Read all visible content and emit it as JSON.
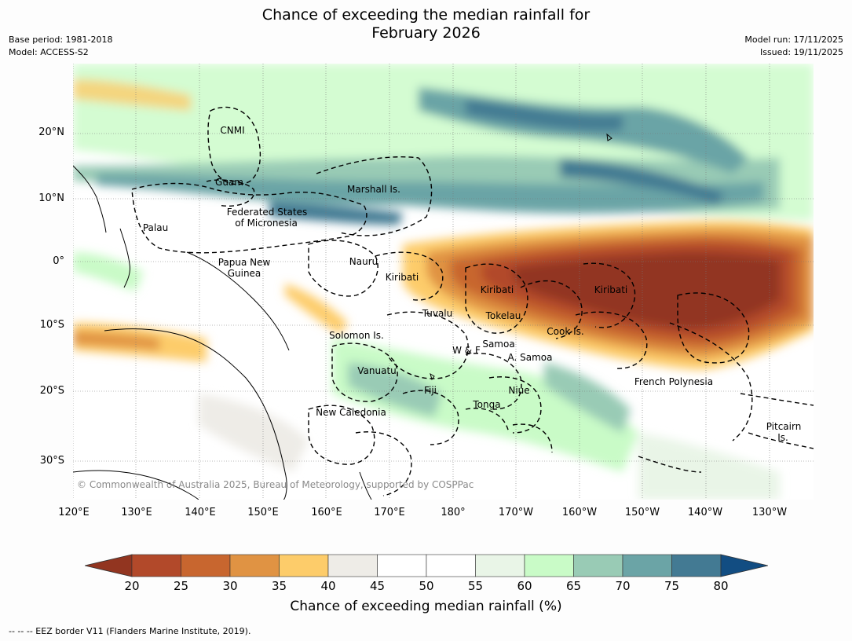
{
  "title": {
    "line1": "Chance of exceeding the median rainfall for",
    "line2": "February 2026"
  },
  "meta": {
    "base_period": "Base period: 1981-2018",
    "model": "Model: ACCESS-S2",
    "model_run": "Model run: 17/11/2025",
    "issued": "Issued: 19/11/2025"
  },
  "axes": {
    "lat_ticks": [
      "20°N",
      "10°N",
      "0°",
      "10°S",
      "20°S",
      "30°S"
    ],
    "lon_ticks": [
      "120°E",
      "130°E",
      "140°E",
      "150°E",
      "160°E",
      "170°E",
      "180°",
      "170°W",
      "160°W",
      "150°W",
      "140°W",
      "130°W"
    ]
  },
  "regions": [
    {
      "name": "CNMI"
    },
    {
      "name": "Guam"
    },
    {
      "name": "Marshall Is."
    },
    {
      "name": "Federated States"
    },
    {
      "name": "of Micronesia"
    },
    {
      "name": "Palau"
    },
    {
      "name": "Papua New"
    },
    {
      "name": "Guinea"
    },
    {
      "name": "Nauru"
    },
    {
      "name": "Kiribati"
    },
    {
      "name": "Kiribati"
    },
    {
      "name": "Kiribati"
    },
    {
      "name": "Tuvalu"
    },
    {
      "name": "Tokelau"
    },
    {
      "name": "Cook Is."
    },
    {
      "name": "Solomon Is."
    },
    {
      "name": "W & F"
    },
    {
      "name": "Samoa"
    },
    {
      "name": "A. Samoa"
    },
    {
      "name": "Vanuatu"
    },
    {
      "name": "Fiji"
    },
    {
      "name": "Niue"
    },
    {
      "name": "Tonga"
    },
    {
      "name": "New Caledonia"
    },
    {
      "name": "French Polynesia"
    },
    {
      "name": "Pitcairn"
    },
    {
      "name": "Is."
    }
  ],
  "copyright": "© Commonwealth of Australia 2025, Bureau of Meteorology, supported by COSPPac",
  "colorbar": {
    "label": "Chance of exceeding median rainfall (%)",
    "ticks": [
      "20",
      "25",
      "30",
      "35",
      "40",
      "45",
      "50",
      "55",
      "60",
      "65",
      "70",
      "75",
      "80"
    ],
    "colors": [
      "#b2492a",
      "#c8662f",
      "#e09343",
      "#fdcc6a",
      "#eeece7",
      "#ffffff",
      "#ffffff",
      "#e9f5e7",
      "#c9fbc7",
      "#99cbb5",
      "#6ba4a6",
      "#437a93"
    ],
    "low_color": "#923520",
    "high_color": "#124d82"
  },
  "footnote": "--  --  -- EEZ border V11 (Flanders Marine Institute, 2019)."
}
